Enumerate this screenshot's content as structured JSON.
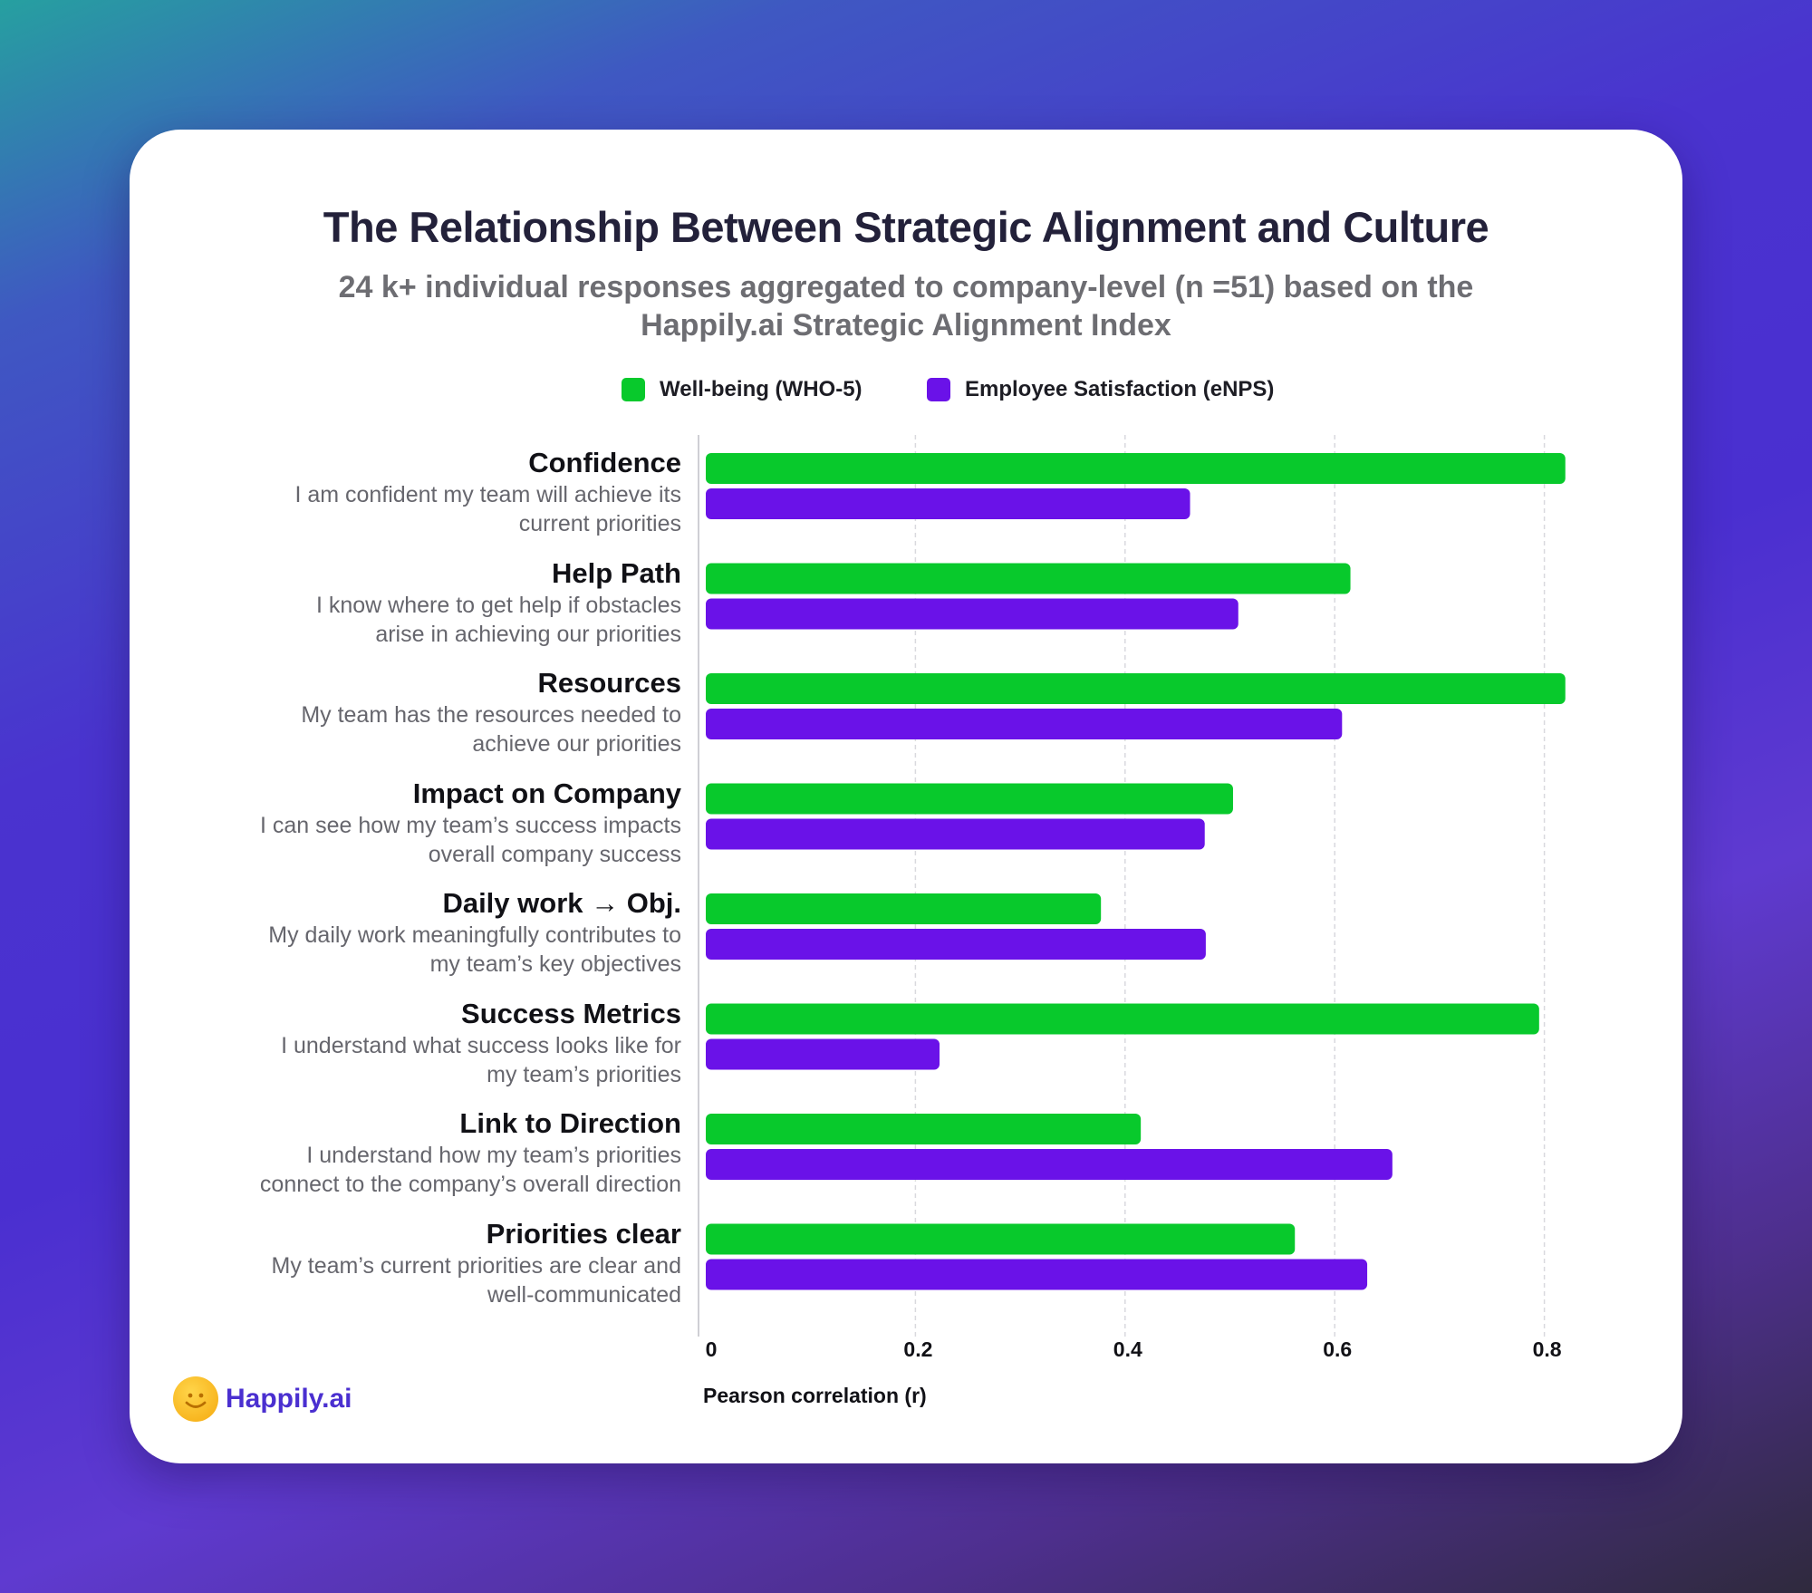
{
  "header": {
    "title": "The Relationship Between Strategic Alignment and Culture",
    "subtitle": "24 k+ individual responses aggregated to company-level (n =51) based on the Happily.ai Strategic Alignment Index"
  },
  "brand": {
    "logo_text": "Happily.ai"
  },
  "colors": {
    "green": "#08c92c",
    "purple": "#6a12e8",
    "grid": "#d9d9de",
    "axis": "#cfcfd4"
  },
  "chart_data": {
    "type": "bar",
    "orientation": "horizontal",
    "xlabel": "Pearson correlation (r)",
    "xlim": [
      0,
      0.8
    ],
    "xticks": [
      "0",
      "0.2",
      "0.4",
      "0.6",
      "0.8"
    ],
    "xtick_values": [
      0,
      0.2,
      0.4,
      0.6,
      0.8
    ],
    "grid": true,
    "legend_position": "top-center",
    "categories": [
      {
        "title": "Confidence",
        "desc": [
          "I am confident my team will achieve its",
          "current priorities"
        ]
      },
      {
        "title": "Help Path",
        "desc": [
          "I know where to get help if obstacles",
          "arise in achieving our priorities"
        ]
      },
      {
        "title": "Resources",
        "desc": [
          "My team has the resources needed to",
          "achieve our priorities"
        ]
      },
      {
        "title": "Impact on Company",
        "desc": [
          "I can see how my team’s success impacts",
          "overall company success"
        ]
      },
      {
        "title": "Daily work → Obj.",
        "desc": [
          "My daily work meaningfully contributes to",
          "my team’s key objectives"
        ]
      },
      {
        "title": "Success Metrics",
        "desc": [
          "I understand what success looks like for",
          "my team’s priorities"
        ]
      },
      {
        "title": "Link to Direction",
        "desc": [
          "I understand how my team’s priorities",
          "connect to the company’s overall direction"
        ]
      },
      {
        "title": "Priorities clear",
        "desc": [
          "My team’s current priorities are clear and",
          "well-communicated"
        ]
      }
    ],
    "series": [
      {
        "name": "Well-being (WHO-5)",
        "color": "#08c92c",
        "values": [
          0.82,
          0.615,
          0.82,
          0.503,
          0.377,
          0.795,
          0.415,
          0.562
        ]
      },
      {
        "name": "Employee Satisfaction (eNPS)",
        "color": "#6a12e8",
        "values": [
          0.462,
          0.508,
          0.607,
          0.476,
          0.477,
          0.223,
          0.655,
          0.631
        ]
      }
    ]
  }
}
